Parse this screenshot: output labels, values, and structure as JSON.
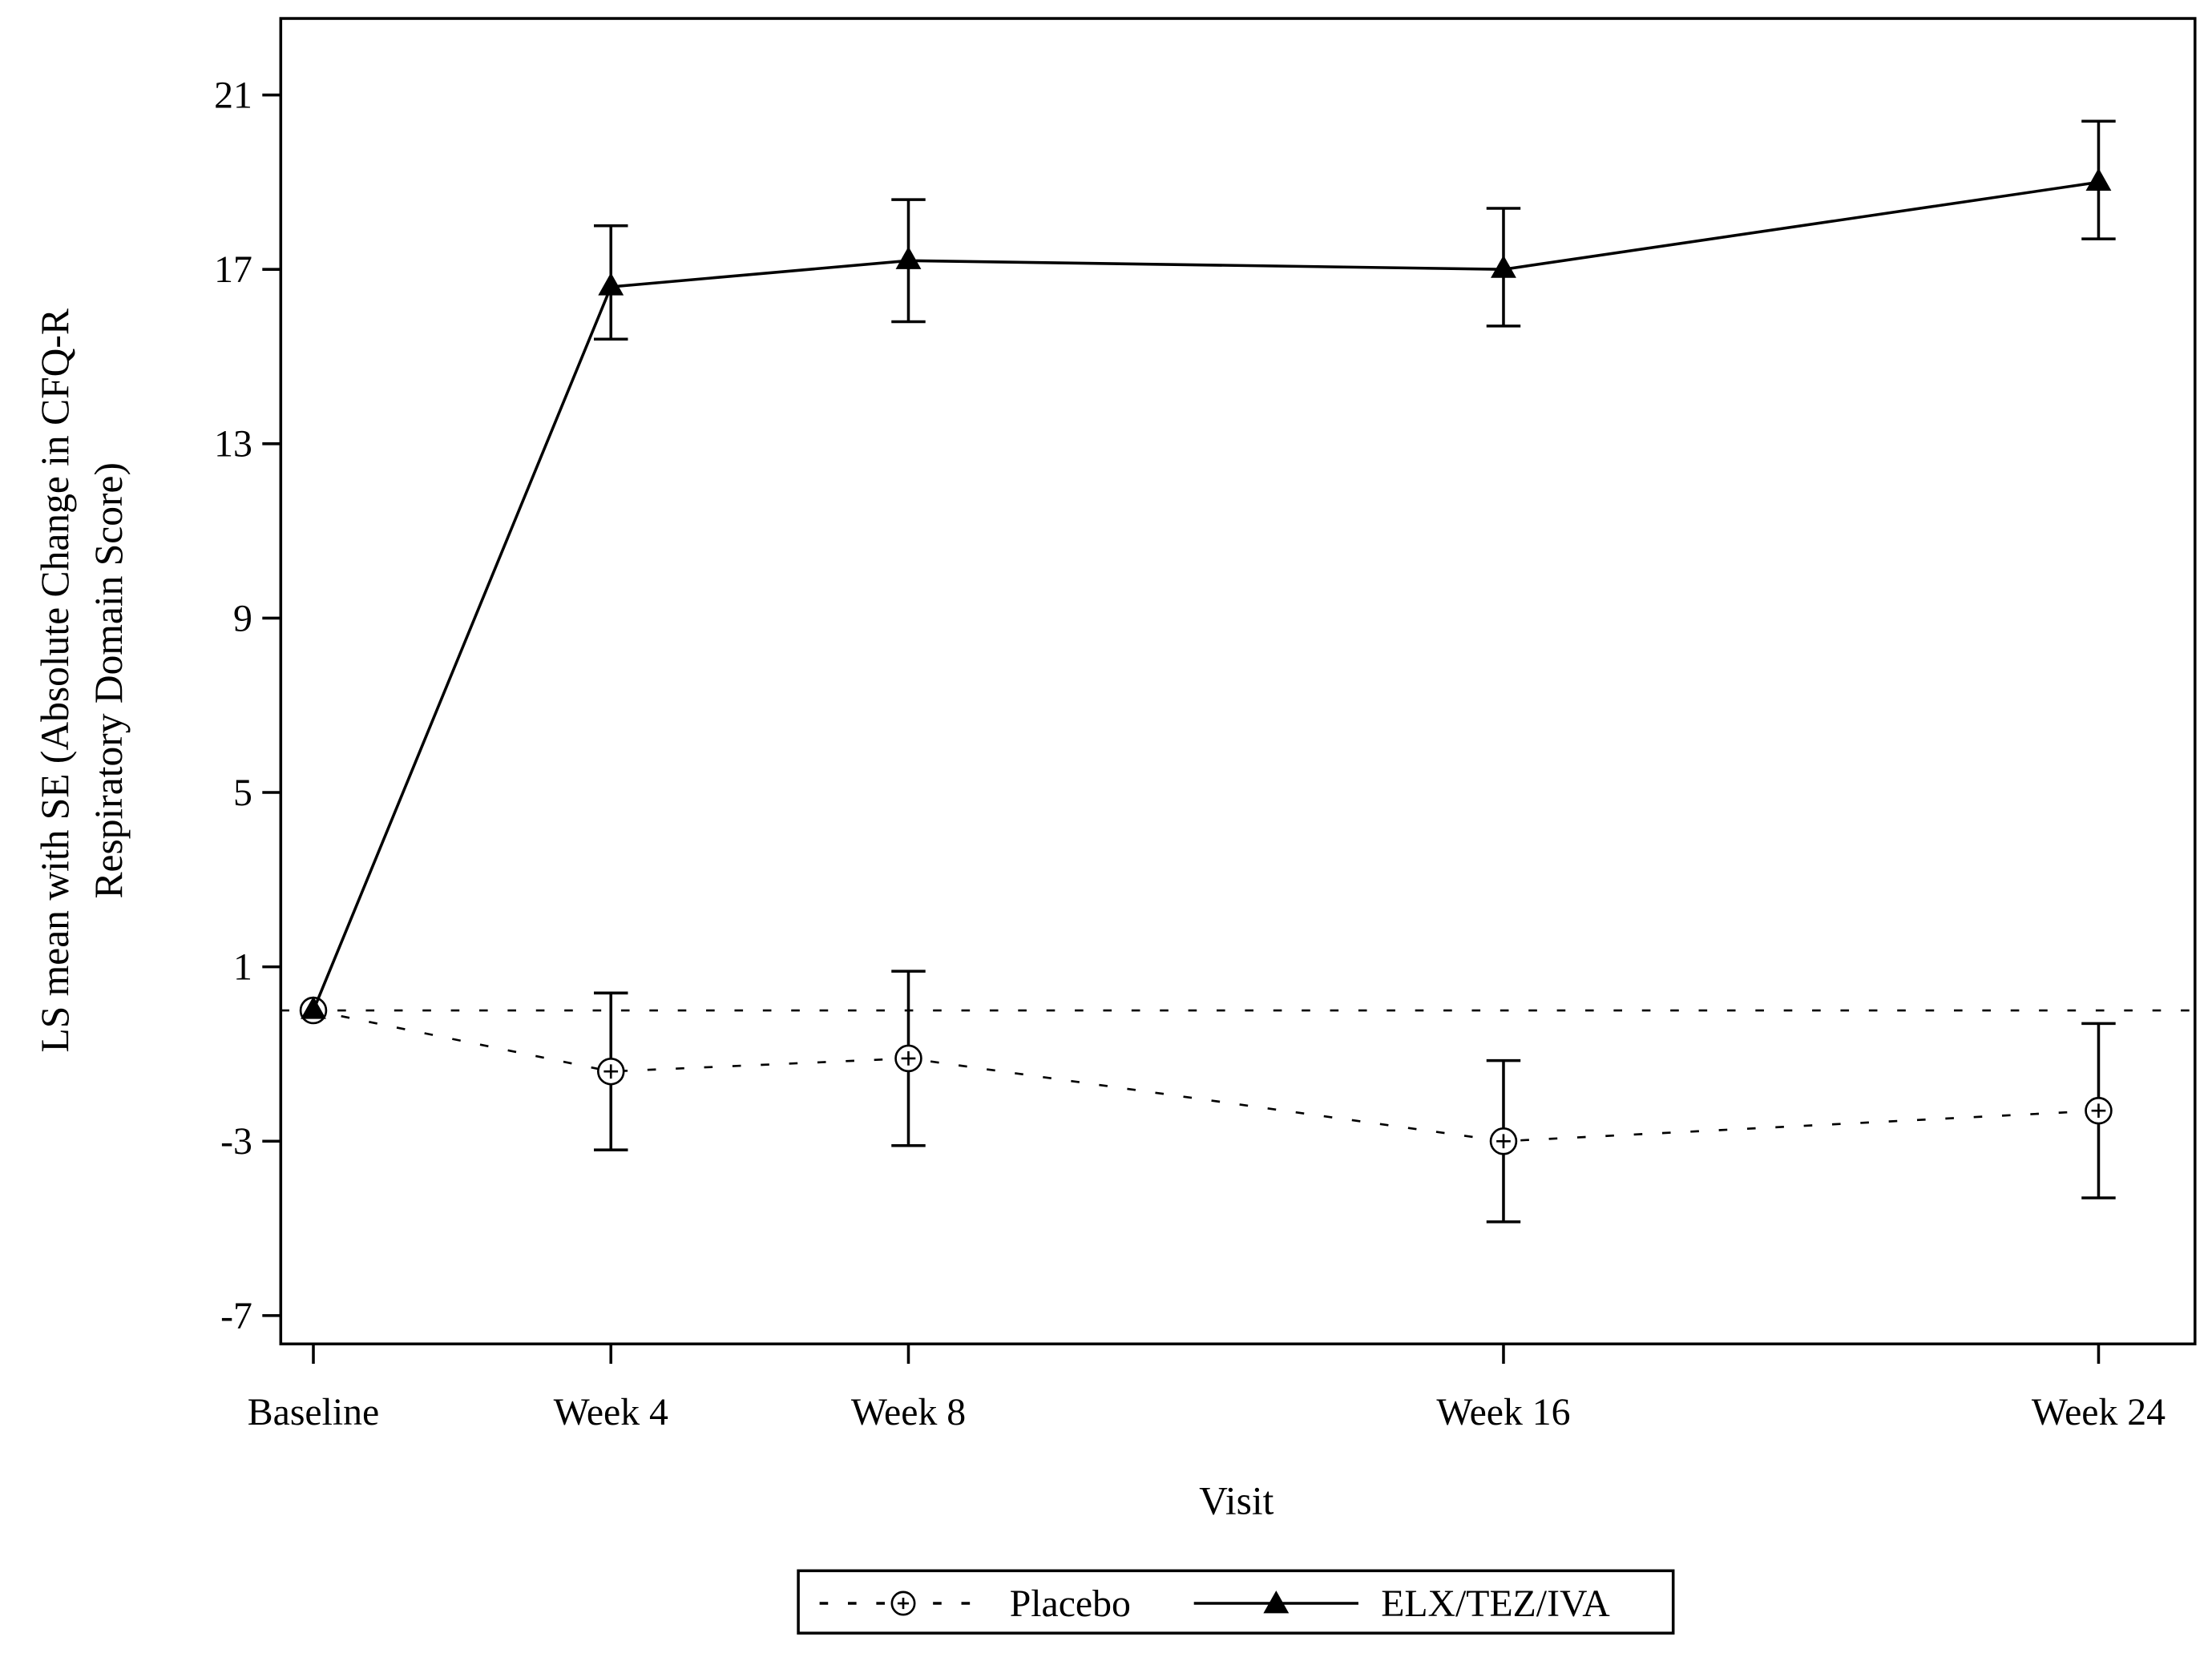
{
  "chart_data": {
    "type": "line",
    "xlabel": "Visit",
    "ylabel_line1": "LS mean with SE (Absolute Change in CFQ-R",
    "ylabel_line2": "Respiratory Domain Score)",
    "categories": [
      "Baseline",
      "Week 4",
      "Week 8",
      "Week 16",
      "Week 24"
    ],
    "weeks": [
      0,
      4,
      8,
      16,
      24
    ],
    "yticks": [
      21,
      17,
      13,
      9,
      5,
      1,
      -3,
      -7
    ],
    "ylim": [
      -7.8,
      22.7
    ],
    "reference_line": 0,
    "legend_position": "bottom",
    "series": [
      {
        "name": "Placebo",
        "style": "dashed",
        "marker": "circle-plus",
        "values": [
          0,
          -1.4,
          -1.1,
          -3.0,
          -2.3
        ],
        "lower": [
          0,
          -3.2,
          -3.1,
          -4.85,
          -4.3
        ],
        "upper": [
          0,
          0.4,
          0.9,
          -1.15,
          -0.3
        ]
      },
      {
        "name": "ELX/TEZ/IVA",
        "style": "solid",
        "marker": "filled-triangle",
        "values": [
          0,
          16.6,
          17.2,
          17.0,
          19.0
        ],
        "lower": [
          0,
          15.4,
          15.8,
          15.7,
          17.7
        ],
        "upper": [
          0,
          18.0,
          18.6,
          18.4,
          20.4
        ]
      }
    ]
  }
}
